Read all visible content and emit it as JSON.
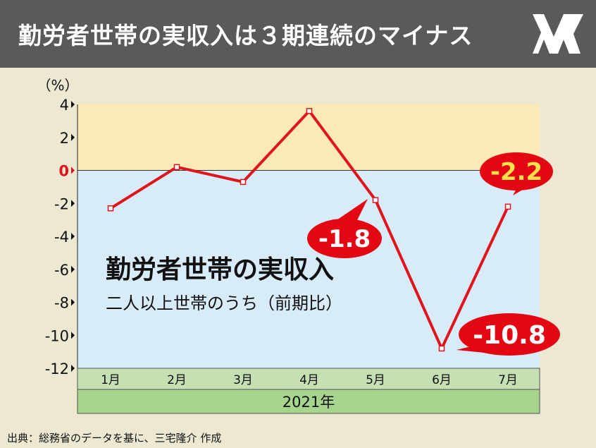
{
  "header": {
    "title": "勤労者世帯の実収入は３期連続のマイナス",
    "logo_icon": "publisher-logo-icon"
  },
  "chart_data": {
    "type": "line",
    "unit_label": "（%）",
    "title": "勤労者世帯の実収入",
    "subtitle": "二人以上世帯のうち（前期比）",
    "year_label": "2021年",
    "categories": [
      "1月",
      "2月",
      "3月",
      "4月",
      "5月",
      "6月",
      "7月"
    ],
    "series": [
      {
        "values": [
          -2.3,
          0.2,
          -0.7,
          3.6,
          -1.8,
          -10.8,
          -2.2
        ]
      }
    ],
    "ylim": [
      -12,
      4
    ],
    "yticks": [
      "4",
      "2",
      "0",
      "-2",
      "-4",
      "-6",
      "-8",
      "-10",
      "-12"
    ],
    "callouts": [
      {
        "index": 4,
        "text": "-1.8",
        "text_color": "#ffffff"
      },
      {
        "index": 5,
        "text": "-10.8",
        "text_color": "#ffffff"
      },
      {
        "index": 6,
        "text": "-2.2",
        "text_color": "#ffe14d"
      }
    ],
    "colors": {
      "line": "#e0141c",
      "positive_band": "#fbe9b6",
      "negative_band": "#d7ebf8",
      "zero_tick": "#e0141c",
      "month_band": "#c5e1b3",
      "year_band": "#a8d58e",
      "callout_fill": "#e30613"
    },
    "grid": false
  },
  "source": "出典：総務省のデータを基に、三宅隆介 作成"
}
